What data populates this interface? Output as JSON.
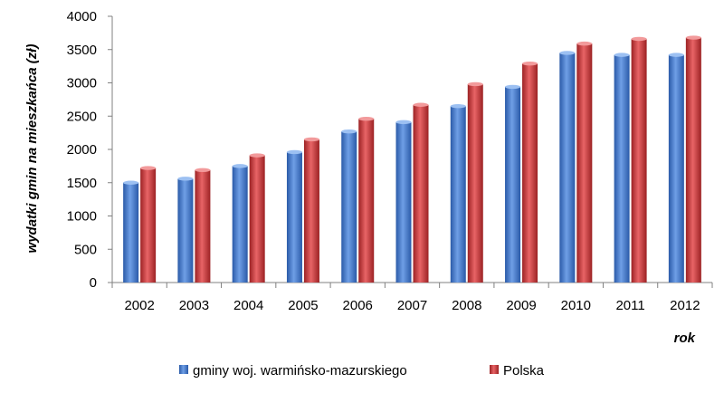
{
  "chart_data": {
    "type": "bar",
    "categories": [
      "2002",
      "2003",
      "2004",
      "2005",
      "2006",
      "2007",
      "2008",
      "2009",
      "2010",
      "2011",
      "2012"
    ],
    "series": [
      {
        "name": "gminy woj. warmińsko-mazurskiego",
        "color": "#3a74c8",
        "values": [
          1500,
          1560,
          1750,
          1960,
          2270,
          2410,
          2650,
          2940,
          3450,
          3420,
          3420
        ]
      },
      {
        "name": "Polska",
        "color": "#c0393b",
        "values": [
          1720,
          1690,
          1910,
          2150,
          2460,
          2670,
          2980,
          3290,
          3590,
          3660,
          3680
        ]
      }
    ],
    "title": "",
    "xlabel": "rok",
    "ylabel": "wydatki gmin na mieszkańca (zł)",
    "ylim": [
      0,
      4000
    ],
    "yticks": [
      "0",
      "500",
      "1000",
      "1500",
      "2000",
      "2500",
      "3000",
      "3500",
      "4000"
    ],
    "grid": false,
    "legend": "bottom"
  }
}
